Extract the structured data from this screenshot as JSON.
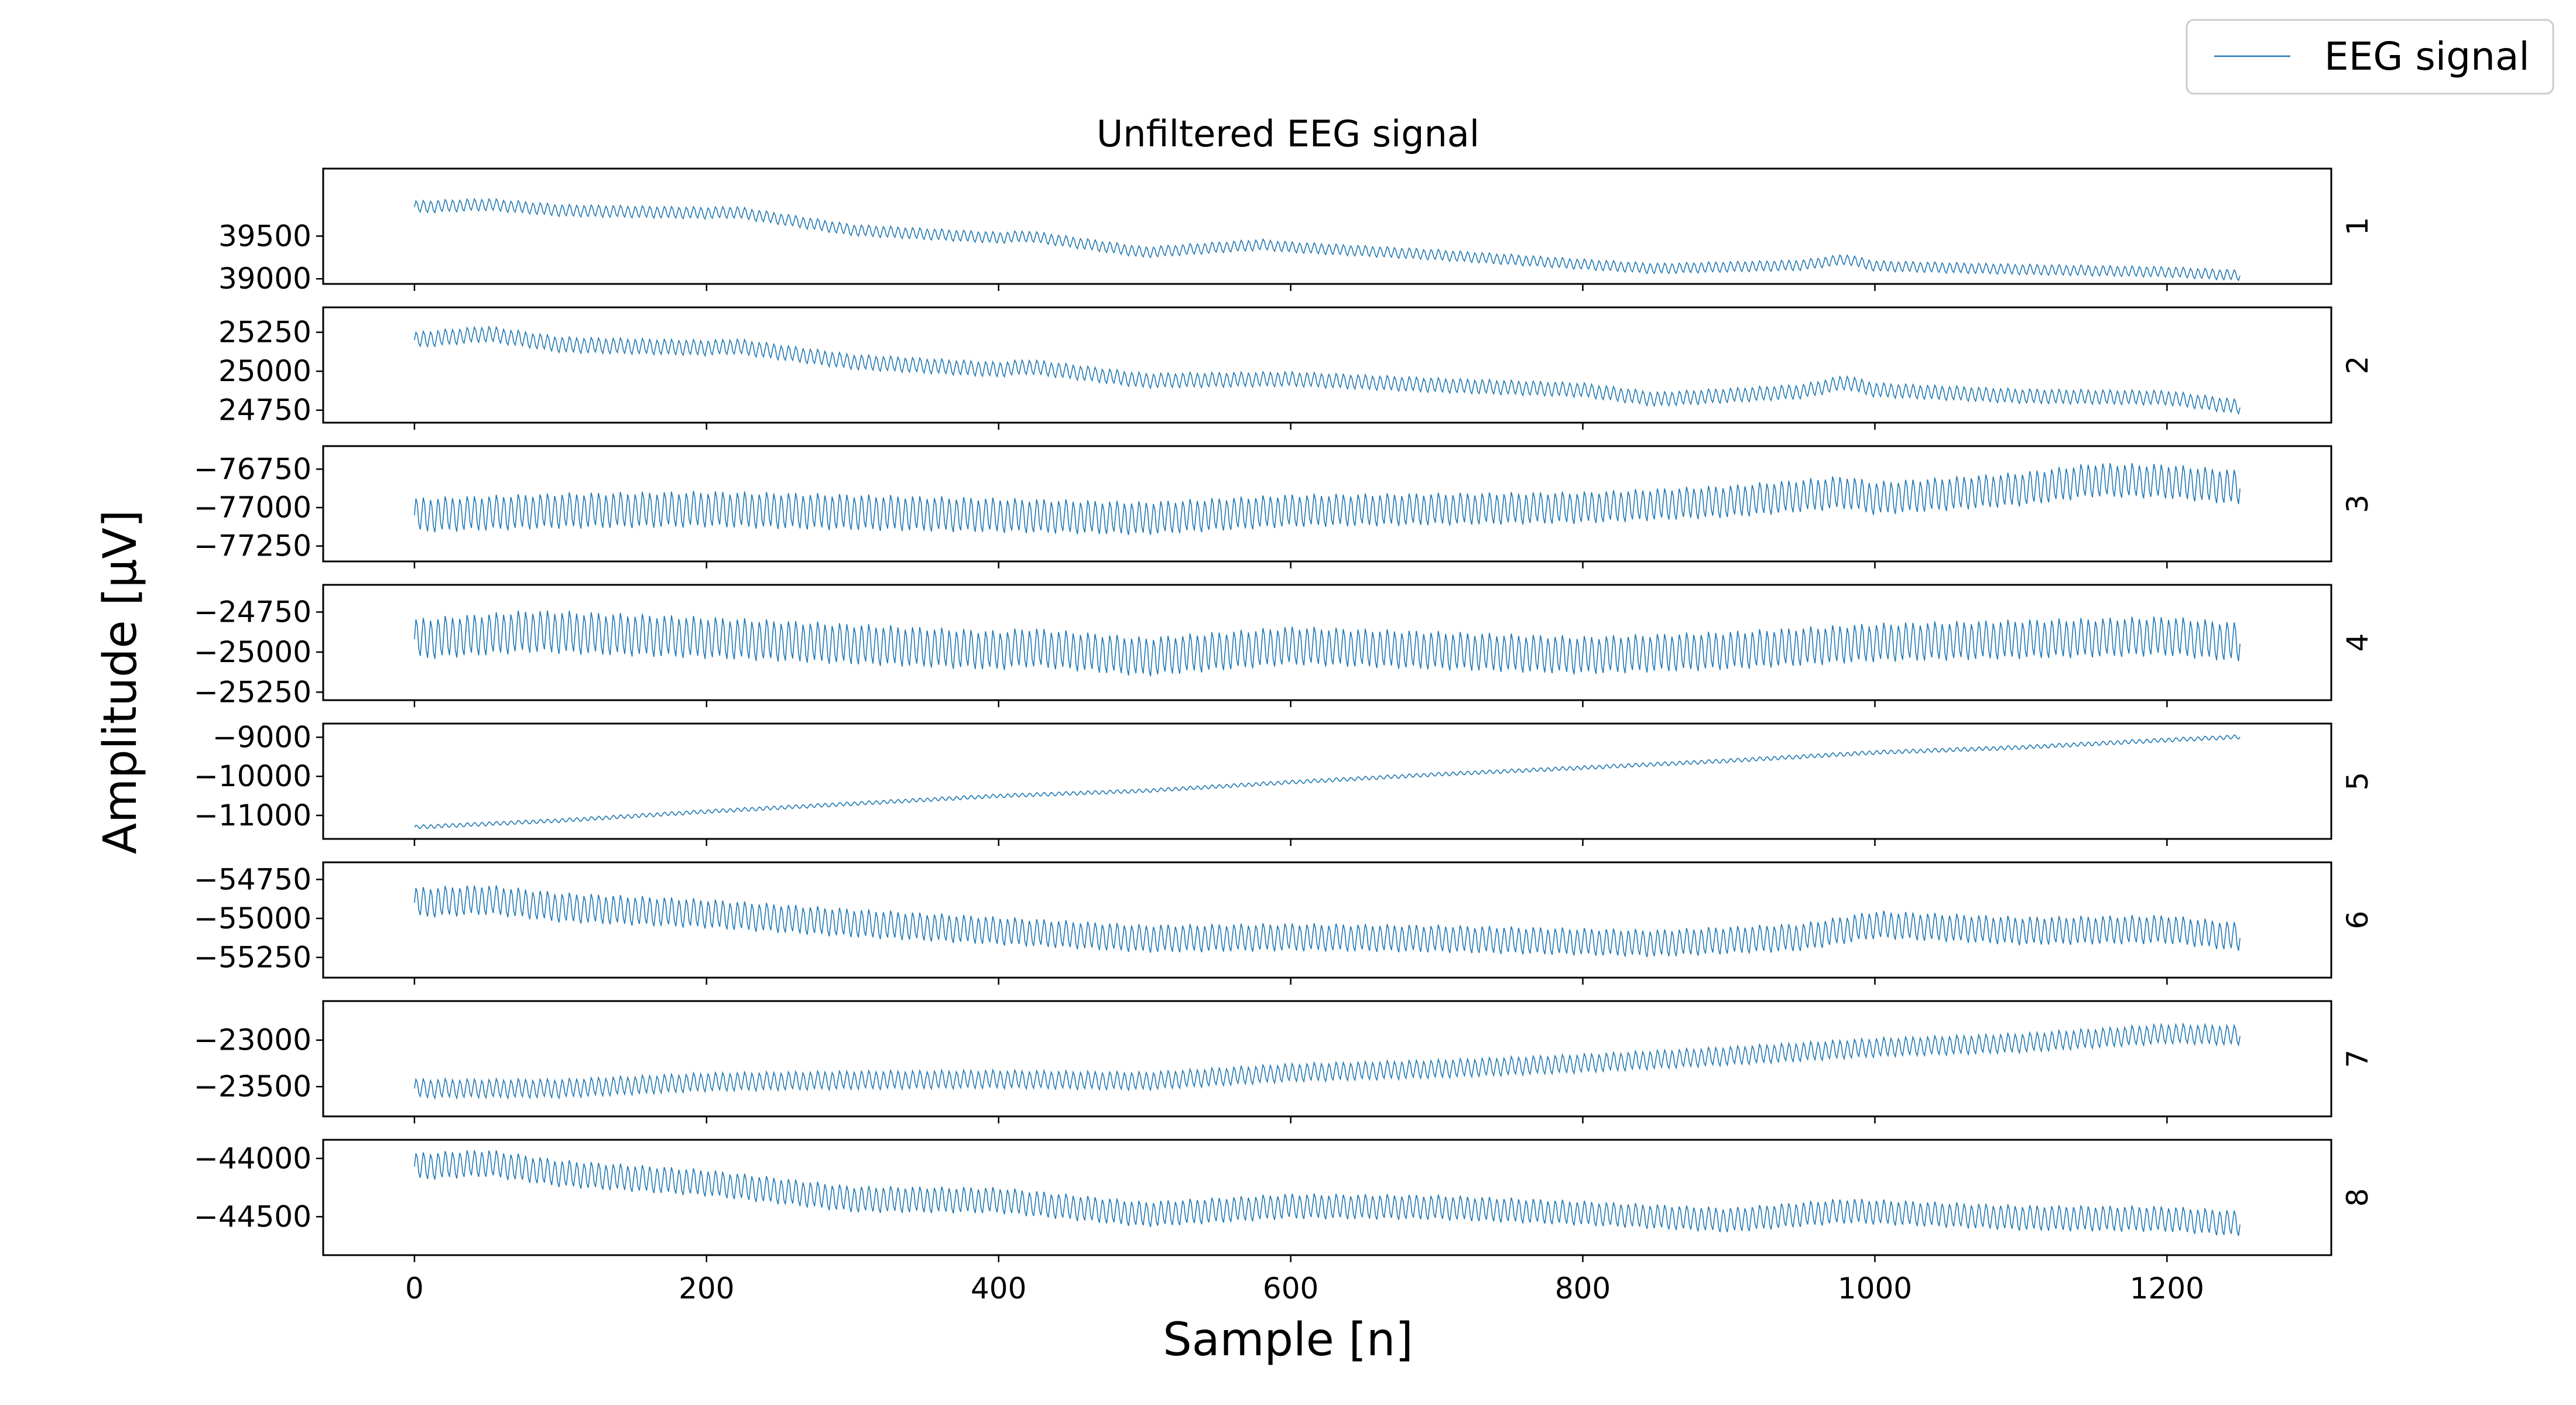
{
  "chart_data": {
    "type": "line",
    "title": "Unfiltered EEG signal",
    "xlabel": "Sample [n]",
    "ylabel": "Amplitude [μV]",
    "legend": {
      "label": "EEG signal",
      "placement": "top-right"
    },
    "grid": false,
    "line_color": "#1f77b4",
    "x": {
      "min": 0,
      "max": 1250,
      "xlim": [
        -62.5,
        1312.5
      ],
      "ticks": [
        0,
        200,
        400,
        600,
        800,
        1000,
        1200
      ]
    },
    "panels": [
      {
        "channel": "1",
        "ylim": [
          38940,
          40290
        ],
        "yticks": [
          39000,
          39500
        ],
        "trend": [
          [
            0,
            39840
          ],
          [
            50,
            39870
          ],
          [
            100,
            39800
          ],
          [
            200,
            39770
          ],
          [
            220,
            39780
          ],
          [
            300,
            39570
          ],
          [
            400,
            39480
          ],
          [
            420,
            39500
          ],
          [
            500,
            39310
          ],
          [
            580,
            39400
          ],
          [
            600,
            39370
          ],
          [
            700,
            39280
          ],
          [
            800,
            39170
          ],
          [
            850,
            39120
          ],
          [
            950,
            39160
          ],
          [
            980,
            39230
          ],
          [
            1000,
            39150
          ],
          [
            1100,
            39110
          ],
          [
            1200,
            39080
          ],
          [
            1250,
            39040
          ]
        ],
        "amp": [
          [
            0,
            140
          ],
          [
            300,
            130
          ],
          [
            800,
            120
          ],
          [
            1250,
            120
          ]
        ]
      },
      {
        "channel": "2",
        "ylim": [
          24670,
          25410
        ],
        "yticks": [
          24750,
          25000,
          25250
        ],
        "trend": [
          [
            0,
            25200
          ],
          [
            50,
            25240
          ],
          [
            100,
            25170
          ],
          [
            200,
            25150
          ],
          [
            220,
            25160
          ],
          [
            300,
            25060
          ],
          [
            400,
            25010
          ],
          [
            420,
            25030
          ],
          [
            500,
            24940
          ],
          [
            600,
            24950
          ],
          [
            700,
            24910
          ],
          [
            800,
            24880
          ],
          [
            850,
            24820
          ],
          [
            950,
            24870
          ],
          [
            980,
            24930
          ],
          [
            1000,
            24880
          ],
          [
            1100,
            24840
          ],
          [
            1200,
            24830
          ],
          [
            1250,
            24770
          ]
        ],
        "amp": [
          [
            0,
            100
          ],
          [
            300,
            95
          ],
          [
            800,
            90
          ],
          [
            1250,
            90
          ]
        ]
      },
      {
        "channel": "3",
        "ylim": [
          -77350,
          -76600
        ],
        "yticks": [
          -76750,
          -77000,
          -77250
        ],
        "trend": [
          [
            0,
            -77050
          ],
          [
            100,
            -77020
          ],
          [
            200,
            -77010
          ],
          [
            300,
            -77030
          ],
          [
            500,
            -77070
          ],
          [
            600,
            -77020
          ],
          [
            700,
            -77010
          ],
          [
            800,
            -77000
          ],
          [
            900,
            -76960
          ],
          [
            980,
            -76900
          ],
          [
            1000,
            -76940
          ],
          [
            1100,
            -76880
          ],
          [
            1150,
            -76820
          ],
          [
            1200,
            -76830
          ],
          [
            1250,
            -76870
          ]
        ],
        "amp": [
          [
            0,
            220
          ],
          [
            250,
            230
          ],
          [
            500,
            210
          ],
          [
            800,
            200
          ],
          [
            1000,
            210
          ],
          [
            1250,
            220
          ]
        ]
      },
      {
        "channel": "4",
        "ylim": [
          -25300,
          -24580
        ],
        "yticks": [
          -24750,
          -25000,
          -25250
        ],
        "trend": [
          [
            0,
            -24920
          ],
          [
            80,
            -24870
          ],
          [
            200,
            -24910
          ],
          [
            300,
            -24950
          ],
          [
            400,
            -24990
          ],
          [
            420,
            -24970
          ],
          [
            500,
            -25030
          ],
          [
            600,
            -24960
          ],
          [
            700,
            -24990
          ],
          [
            800,
            -25020
          ],
          [
            900,
            -24990
          ],
          [
            1000,
            -24940
          ],
          [
            1100,
            -24920
          ],
          [
            1200,
            -24900
          ],
          [
            1250,
            -24940
          ]
        ],
        "amp": [
          [
            0,
            250
          ],
          [
            100,
            260
          ],
          [
            400,
            240
          ],
          [
            800,
            230
          ],
          [
            1250,
            240
          ]
        ]
      },
      {
        "channel": "5",
        "ylim": [
          -11600,
          -8650
        ],
        "yticks": [
          -9000,
          -10000,
          -11000
        ],
        "trend": [
          [
            0,
            -11300
          ],
          [
            100,
            -11130
          ],
          [
            200,
            -10900
          ],
          [
            300,
            -10700
          ],
          [
            400,
            -10500
          ],
          [
            500,
            -10370
          ],
          [
            600,
            -10150
          ],
          [
            700,
            -9950
          ],
          [
            800,
            -9780
          ],
          [
            900,
            -9600
          ],
          [
            1000,
            -9390
          ],
          [
            1100,
            -9260
          ],
          [
            1200,
            -9070
          ],
          [
            1250,
            -8990
          ]
        ],
        "amp": [
          [
            0,
            100
          ],
          [
            600,
            95
          ],
          [
            1250,
            105
          ]
        ]
      },
      {
        "channel": "6",
        "ylim": [
          -55380,
          -54640
        ],
        "yticks": [
          -54750,
          -55000,
          -55250
        ],
        "trend": [
          [
            0,
            -54900
          ],
          [
            50,
            -54880
          ],
          [
            100,
            -54930
          ],
          [
            200,
            -54970
          ],
          [
            300,
            -55030
          ],
          [
            400,
            -55080
          ],
          [
            500,
            -55130
          ],
          [
            600,
            -55120
          ],
          [
            700,
            -55130
          ],
          [
            800,
            -55150
          ],
          [
            850,
            -55160
          ],
          [
            950,
            -55120
          ],
          [
            1000,
            -55040
          ],
          [
            1100,
            -55080
          ],
          [
            1200,
            -55070
          ],
          [
            1250,
            -55120
          ]
        ],
        "amp": [
          [
            0,
            190
          ],
          [
            400,
            175
          ],
          [
            800,
            170
          ],
          [
            1250,
            180
          ]
        ]
      },
      {
        "channel": "7",
        "ylim": [
          -23820,
          -22580
        ],
        "yticks": [
          -23000,
          -23500
        ],
        "trend": [
          [
            0,
            -23520
          ],
          [
            100,
            -23520
          ],
          [
            200,
            -23450
          ],
          [
            300,
            -23430
          ],
          [
            400,
            -23420
          ],
          [
            500,
            -23440
          ],
          [
            600,
            -23350
          ],
          [
            700,
            -23310
          ],
          [
            800,
            -23250
          ],
          [
            900,
            -23170
          ],
          [
            1000,
            -23080
          ],
          [
            1100,
            -23030
          ],
          [
            1200,
            -22930
          ],
          [
            1250,
            -22950
          ]
        ],
        "amp": [
          [
            0,
            200
          ],
          [
            500,
            190
          ],
          [
            1000,
            200
          ],
          [
            1250,
            210
          ]
        ]
      },
      {
        "channel": "8",
        "ylim": [
          -44830,
          -43840
        ],
        "yticks": [
          -44000,
          -44500
        ],
        "trend": [
          [
            0,
            -44070
          ],
          [
            50,
            -44040
          ],
          [
            100,
            -44130
          ],
          [
            200,
            -44210
          ],
          [
            300,
            -44350
          ],
          [
            400,
            -44360
          ],
          [
            500,
            -44480
          ],
          [
            600,
            -44410
          ],
          [
            700,
            -44420
          ],
          [
            800,
            -44470
          ],
          [
            900,
            -44530
          ],
          [
            980,
            -44450
          ],
          [
            1100,
            -44510
          ],
          [
            1200,
            -44520
          ],
          [
            1250,
            -44560
          ]
        ],
        "amp": [
          [
            0,
            230
          ],
          [
            300,
            220
          ],
          [
            800,
            205
          ],
          [
            1250,
            215
          ]
        ]
      }
    ]
  }
}
